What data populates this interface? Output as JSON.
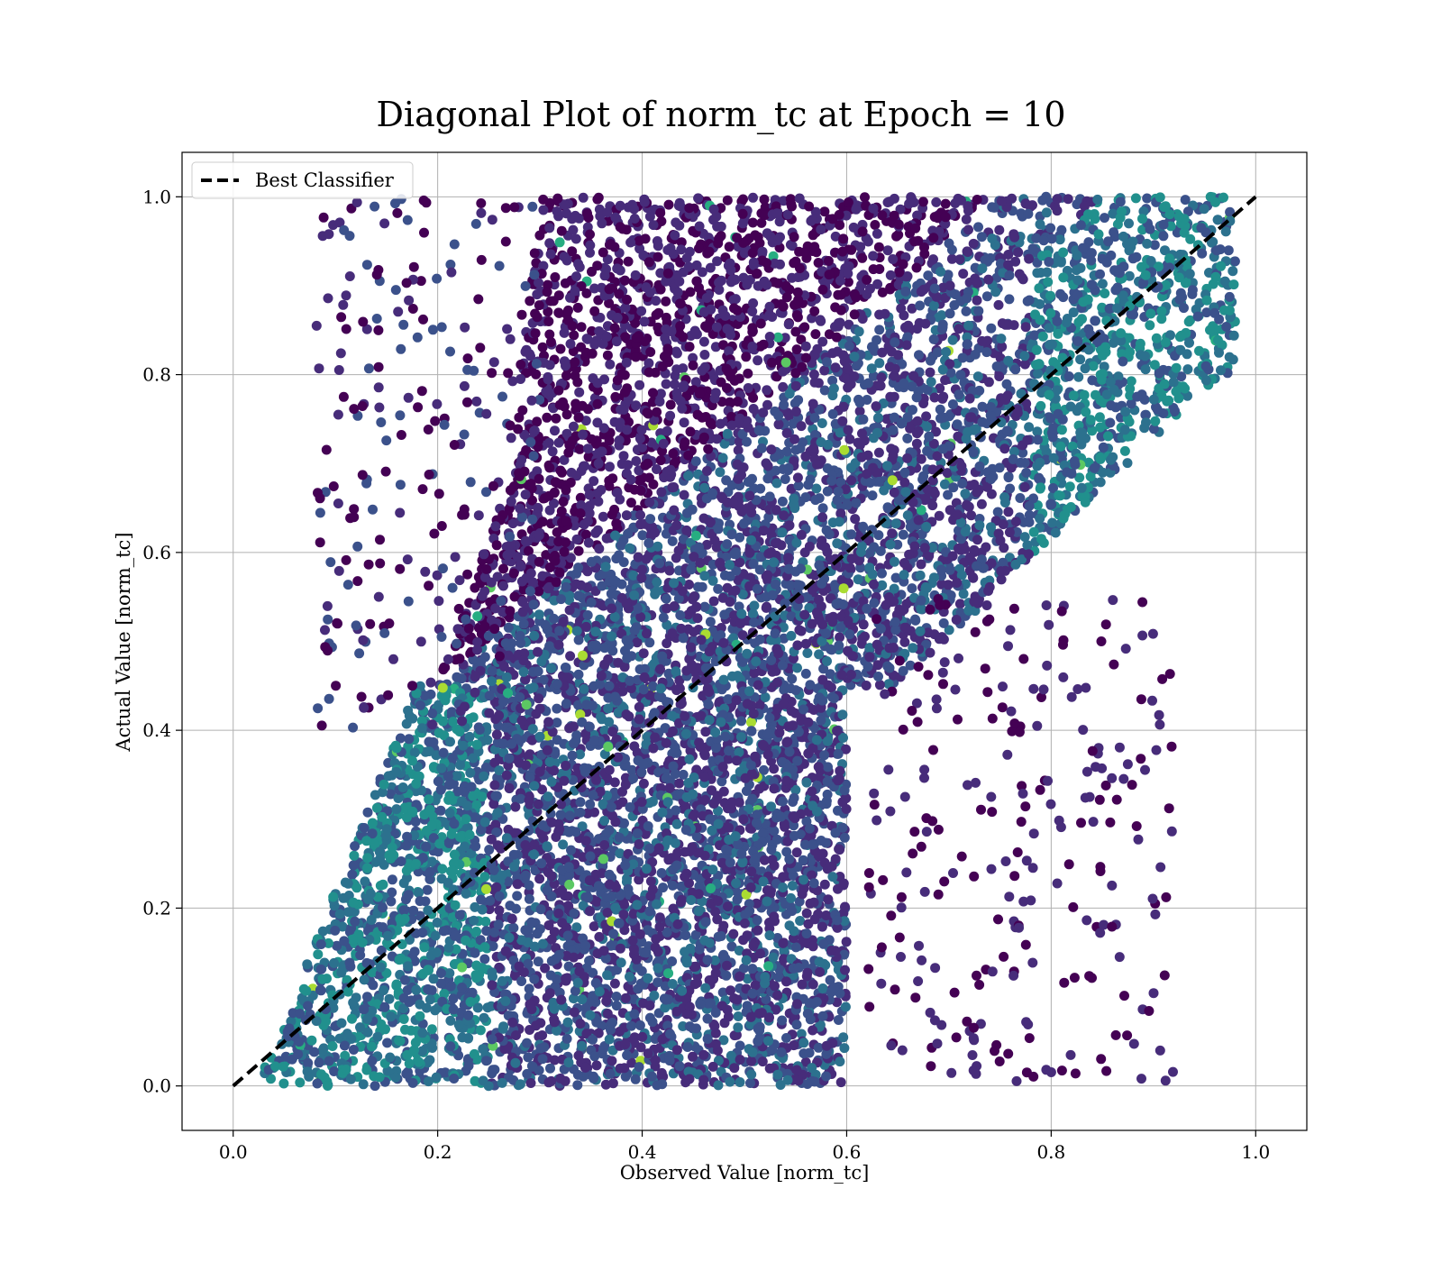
{
  "chart_data": {
    "type": "scatter",
    "title": "Diagonal Plot of norm_tc at Epoch = 10",
    "xlabel": "Observed Value [norm_tc]",
    "ylabel": "Actual Value [norm_tc]",
    "xlim": [
      -0.05,
      1.05
    ],
    "ylim": [
      -0.05,
      1.05
    ],
    "xticks": [
      "0.0",
      "0.2",
      "0.4",
      "0.6",
      "0.8",
      "1.0"
    ],
    "yticks": [
      "0.0",
      "0.2",
      "0.4",
      "0.6",
      "0.8",
      "1.0"
    ],
    "grid": true,
    "legend": {
      "placement": "top-left",
      "entries": [
        "Best Classifier"
      ]
    },
    "colormap": [
      "#440154",
      "#472c7a",
      "#3b518b",
      "#2c718e",
      "#21908d",
      "#27ad81",
      "#5cc863",
      "#aadc32"
    ],
    "reference_line": {
      "name": "Best Classifier",
      "x": [
        0.0,
        1.0
      ],
      "y": [
        0.0,
        1.0
      ],
      "style": "dashed",
      "color": "#000000"
    },
    "series": [
      {
        "values_density_regions": [
          {
            "x_range": [
              0.03,
              0.3
            ],
            "y_range": [
              0.0,
              0.45
            ],
            "dominant_color": "#2c718e"
          },
          {
            "x_range": [
              0.25,
              0.6
            ],
            "y_range": [
              0.0,
              0.4
            ],
            "dominant_color": "#3b518b"
          },
          {
            "x_range": [
              0.3,
              0.6
            ],
            "y_range": [
              0.4,
              1.0
            ],
            "dominant_color": "#440154"
          },
          {
            "x_range": [
              0.55,
              0.95
            ],
            "y_range": [
              0.55,
              1.0
            ],
            "dominant_color": "#3b518b"
          },
          {
            "x_range": [
              0.8,
              0.98
            ],
            "y_range": [
              0.7,
              1.0
            ],
            "dominant_color": "#2c718e"
          }
        ]
      }
    ]
  }
}
